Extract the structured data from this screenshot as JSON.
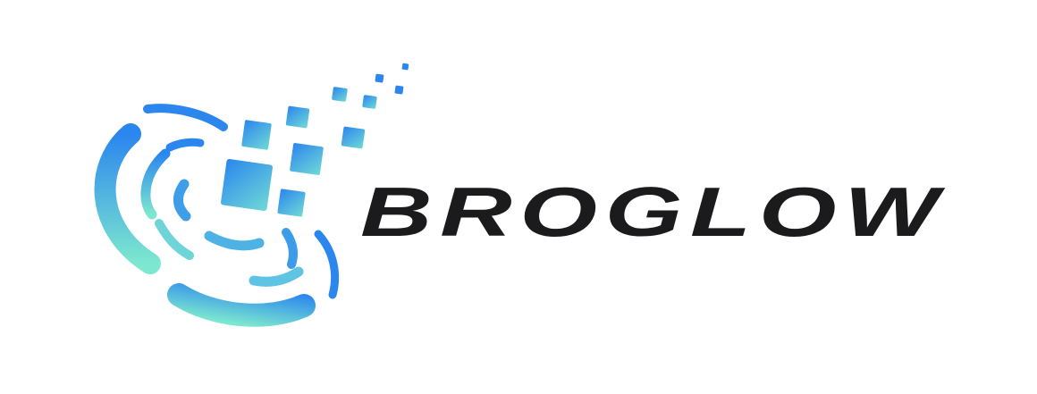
{
  "brand": {
    "name": "BROGLOW",
    "colors": {
      "wordmark": "#1b1b1d",
      "gradient_start": "#2b86ee",
      "gradient_end": "#7de8cf"
    }
  }
}
